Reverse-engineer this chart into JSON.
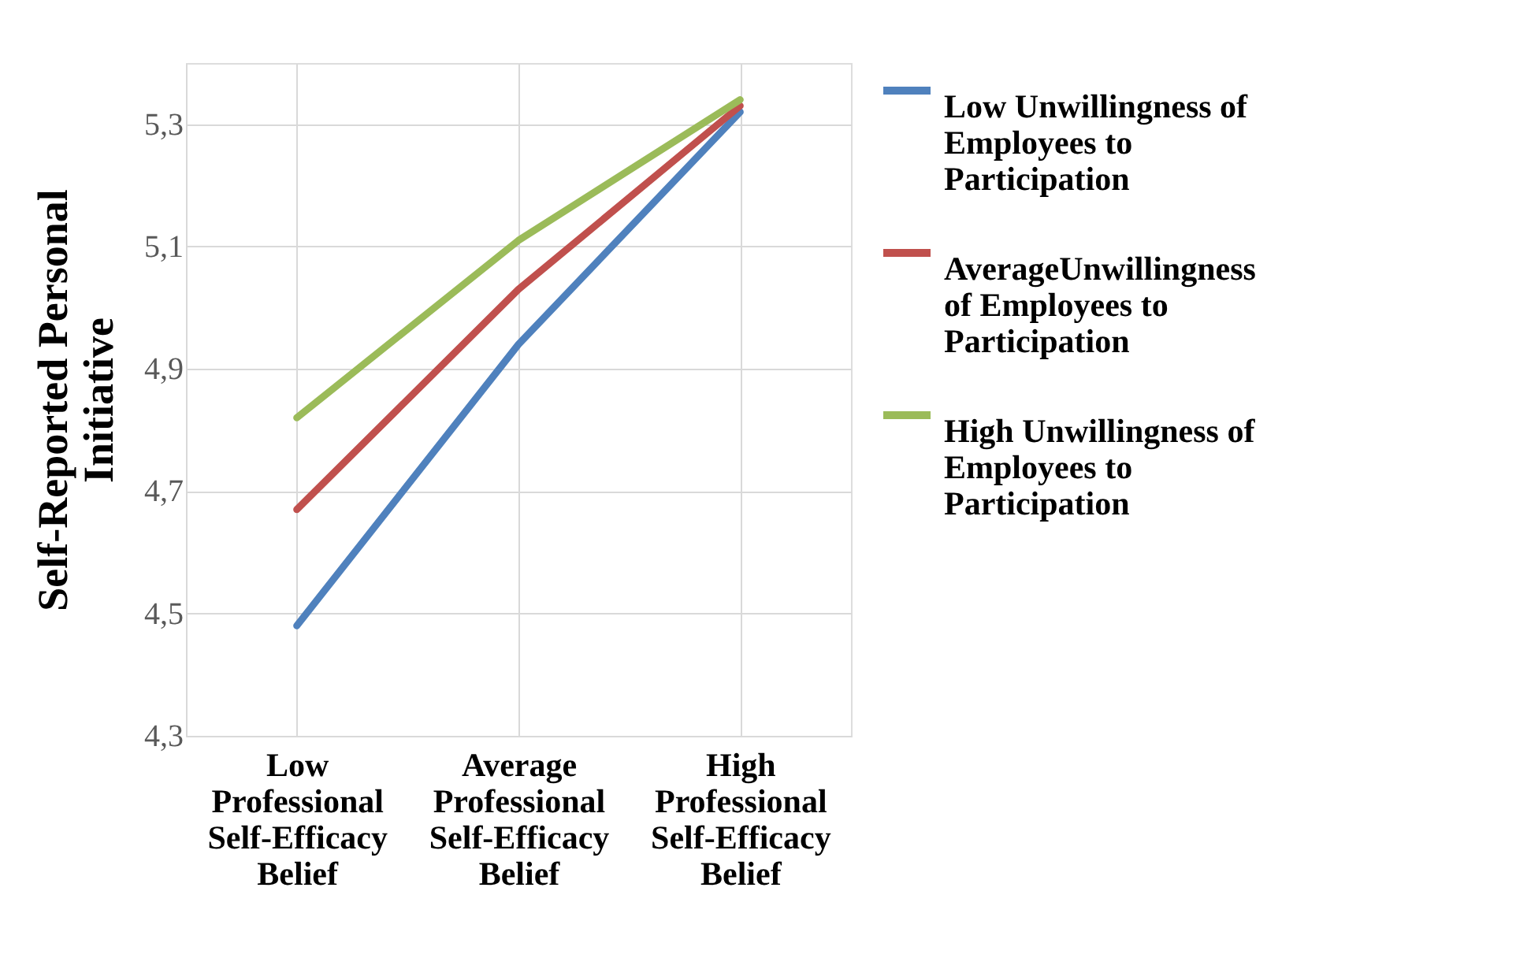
{
  "chart_data": {
    "type": "line",
    "ylabel": "Self-Reported Personal Initiative",
    "categories": [
      "Low Professional Self-Efficacy Belief",
      "Average Professional Self-Efficacy Belief",
      "High Professional Self-Efficacy Belief"
    ],
    "series": [
      {
        "name": "Low Unwillingness of Employees to Participation",
        "color": "#4f81bd",
        "values": [
          4.48,
          4.94,
          5.32
        ]
      },
      {
        "name": "AverageUnwillingness of Employees to Participation",
        "color": "#c0504d",
        "values": [
          4.67,
          5.03,
          5.33
        ]
      },
      {
        "name": "High Unwillingness of Employees to Participation",
        "color": "#9bbb59",
        "values": [
          4.82,
          5.11,
          5.34
        ]
      }
    ],
    "ylim": [
      4.3,
      5.4
    ],
    "yticks": [
      {
        "value": 4.3,
        "label": "4,3"
      },
      {
        "value": 4.5,
        "label": "4,5"
      },
      {
        "value": 4.7,
        "label": "4,7"
      },
      {
        "value": 4.9,
        "label": "4,9"
      },
      {
        "value": 5.1,
        "label": "5,1"
      },
      {
        "value": 5.3,
        "label": "5,3"
      }
    ],
    "grid": true,
    "legend": "right",
    "marker": "none",
    "line_style": "solid"
  }
}
